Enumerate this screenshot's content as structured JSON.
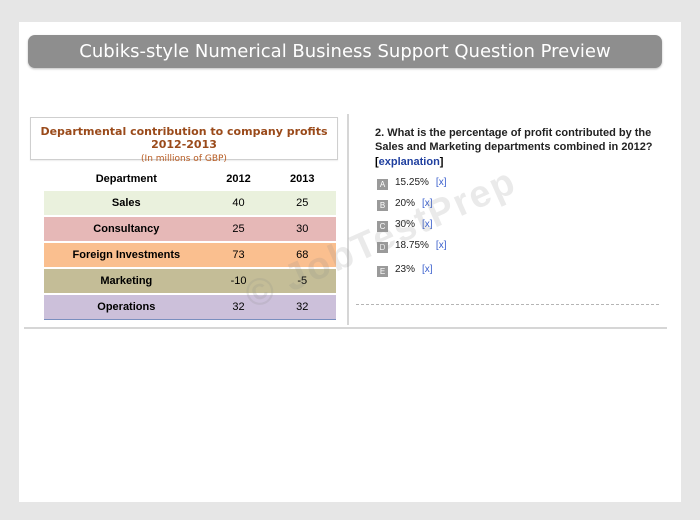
{
  "header": {
    "title": "Cubiks-style Numerical Business Support Question Preview"
  },
  "table_caption": {
    "title": "Departmental contribution to company profits 2012-2013",
    "subtitle": "(In millions of GBP)"
  },
  "table": {
    "headers": [
      "Department",
      "2012",
      "2013"
    ],
    "rows": [
      {
        "dept": "Sales",
        "y2012": "40",
        "y2013": "25",
        "color": "#eaf1dd"
      },
      {
        "dept": "Consultancy",
        "y2012": "25",
        "y2013": "30",
        "color": "#e6b8b7"
      },
      {
        "dept": "Foreign Investments",
        "y2012": "73",
        "y2013": "68",
        "color": "#fabf8f"
      },
      {
        "dept": "Marketing",
        "y2012": "-10",
        "y2013": "-5",
        "color": "#c4bd97"
      },
      {
        "dept": "Operations",
        "y2012": "32",
        "y2013": "32",
        "color": "#ccc0da"
      }
    ]
  },
  "question": {
    "text": "2. What is the percentage of profit contributed by the Sales and Marketing departments combined in 2012?",
    "explanation_label": "explanation",
    "bracket_open": "[",
    "bracket_close": "]"
  },
  "options": [
    {
      "letter": "A",
      "text": "15.25%",
      "x": "[x]"
    },
    {
      "letter": "B",
      "text": "20%",
      "x": "[x]"
    },
    {
      "letter": "C",
      "text": "30%",
      "x": "[x]"
    },
    {
      "letter": "D",
      "text": "18.75%",
      "x": "[x]"
    },
    {
      "letter": "E",
      "text": "23%",
      "x": "[x]"
    }
  ],
  "watermark": "© JobTestPrep"
}
